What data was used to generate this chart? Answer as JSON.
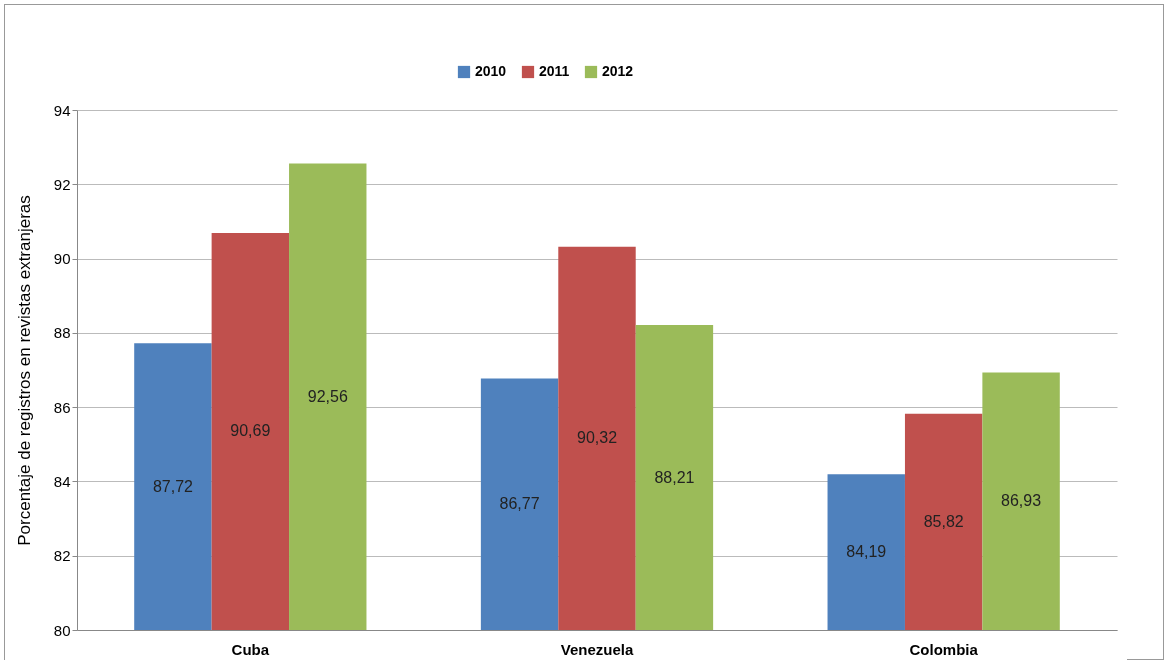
{
  "chart_data": {
    "type": "bar",
    "ylabel": "Porcentaje de registros en revistas extranjeras",
    "categories": [
      "Cuba",
      "Venezuela",
      "Colombia"
    ],
    "series": [
      {
        "name": "2010",
        "color": "#4f81bd",
        "values": [
          87.72,
          86.77,
          84.19
        ],
        "value_labels": [
          "87,72",
          "86,77",
          "84,19"
        ]
      },
      {
        "name": "2011",
        "color": "#c0504d",
        "values": [
          90.69,
          90.32,
          85.82
        ],
        "value_labels": [
          "90,69",
          "90,32",
          "85,82"
        ]
      },
      {
        "name": "2012",
        "color": "#9bbb59",
        "values": [
          92.56,
          88.21,
          86.93
        ],
        "value_labels": [
          "92,56",
          "88,21",
          "86,93"
        ]
      }
    ],
    "ylim": [
      80,
      94
    ],
    "yticks": [
      80,
      82,
      84,
      86,
      88,
      90,
      92,
      94
    ],
    "grid": "y",
    "legend": "top"
  }
}
